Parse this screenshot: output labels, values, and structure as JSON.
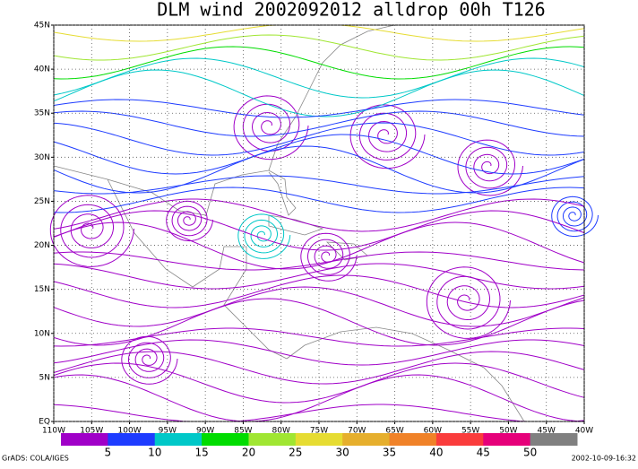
{
  "title": "DLM wind 2002092012 alldrop 00h T126",
  "map": {
    "lon_ticks": [
      {
        "value": -110,
        "label": "110W"
      },
      {
        "value": -105,
        "label": "105W"
      },
      {
        "value": -100,
        "label": "100W"
      },
      {
        "value": -95,
        "label": "95W"
      },
      {
        "value": -90,
        "label": "90W"
      },
      {
        "value": -85,
        "label": "85W"
      },
      {
        "value": -80,
        "label": "80W"
      },
      {
        "value": -75,
        "label": "75W"
      },
      {
        "value": -70,
        "label": "70W"
      },
      {
        "value": -65,
        "label": "65W"
      },
      {
        "value": -60,
        "label": "60W"
      },
      {
        "value": -55,
        "label": "55W"
      },
      {
        "value": -50,
        "label": "50W"
      },
      {
        "value": -45,
        "label": "45W"
      },
      {
        "value": -40,
        "label": "40W"
      }
    ],
    "lat_ticks": [
      {
        "value": 0,
        "label": "EQ"
      },
      {
        "value": 5,
        "label": "5N"
      },
      {
        "value": 10,
        "label": "10N"
      },
      {
        "value": 15,
        "label": "15N"
      },
      {
        "value": 20,
        "label": "20N"
      },
      {
        "value": 25,
        "label": "25N"
      },
      {
        "value": 30,
        "label": "30N"
      },
      {
        "value": 35,
        "label": "35N"
      },
      {
        "value": 40,
        "label": "40N"
      },
      {
        "value": 45,
        "label": "45N"
      }
    ]
  },
  "colorbar": {
    "levels": [
      5,
      10,
      15,
      20,
      25,
      30,
      35,
      40,
      45,
      50
    ],
    "colors": [
      "#a000c8",
      "#1e3cff",
      "#00c8c8",
      "#00dc00",
      "#a0e632",
      "#e6dc32",
      "#e6af2d",
      "#f08228",
      "#fa3c3c",
      "#e6007a",
      "#808080"
    ]
  },
  "footer_left": "GrADS: COLA/IGES",
  "footer_right": "2002-10-09-16:32"
}
